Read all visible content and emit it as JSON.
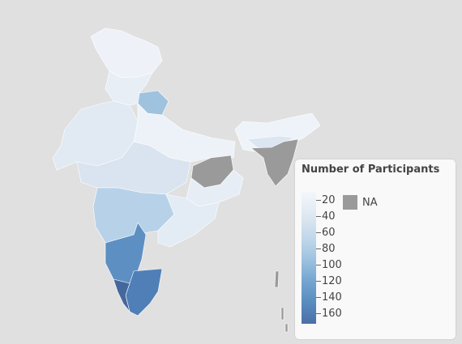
{
  "map": {
    "subject": "India states choropleth",
    "colors": {
      "background": "#e0e0e0",
      "na": "#9a9a9a",
      "scale_low": "#f4f7fb",
      "scale_high": "#4a6fa7"
    },
    "regions": [
      {
        "name": "north",
        "value": 20
      },
      {
        "name": "northwest-central",
        "value": 30
      },
      {
        "name": "northeast",
        "value": 20
      },
      {
        "name": "highlighted-north",
        "value": 60
      },
      {
        "name": "west",
        "value": 30
      },
      {
        "name": "central",
        "value": 30
      },
      {
        "name": "east",
        "value": 20
      },
      {
        "name": "na-region",
        "value": null
      },
      {
        "name": "southwest",
        "value": 70
      },
      {
        "name": "southeast",
        "value": 30
      },
      {
        "name": "south",
        "value": 110
      },
      {
        "name": "far-south",
        "value": 150
      }
    ]
  },
  "legend": {
    "title": "Number of Participants",
    "ticks": [
      "20",
      "40",
      "60",
      "80",
      "100",
      "120",
      "140",
      "160"
    ],
    "na_label": "NA"
  }
}
